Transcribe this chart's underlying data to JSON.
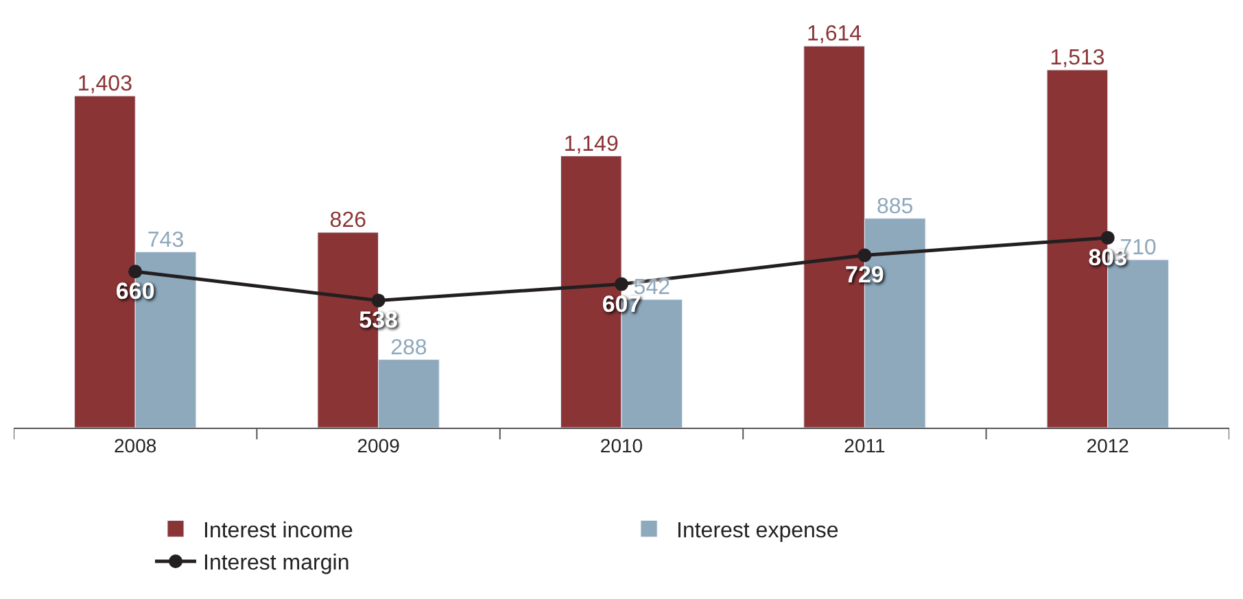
{
  "chart_data": {
    "type": "bar",
    "categories": [
      "2008",
      "2009",
      "2010",
      "2011",
      "2012"
    ],
    "series": [
      {
        "name": "Interest income",
        "color": "#8b3436",
        "values": [
          1403,
          826,
          1149,
          1614,
          1513
        ],
        "value_labels": [
          "1,403",
          "826",
          "1,149",
          "1,614",
          "1,513"
        ]
      },
      {
        "name": "Interest expense",
        "color": "#8ea8bc",
        "values": [
          743,
          288,
          542,
          885,
          710
        ]
      },
      {
        "name": "Interest margin",
        "type": "line",
        "color": "#231f20",
        "marker": "circle",
        "values": [
          660,
          538,
          607,
          729,
          803
        ]
      }
    ],
    "data_labels": true,
    "legend": "bottom"
  }
}
